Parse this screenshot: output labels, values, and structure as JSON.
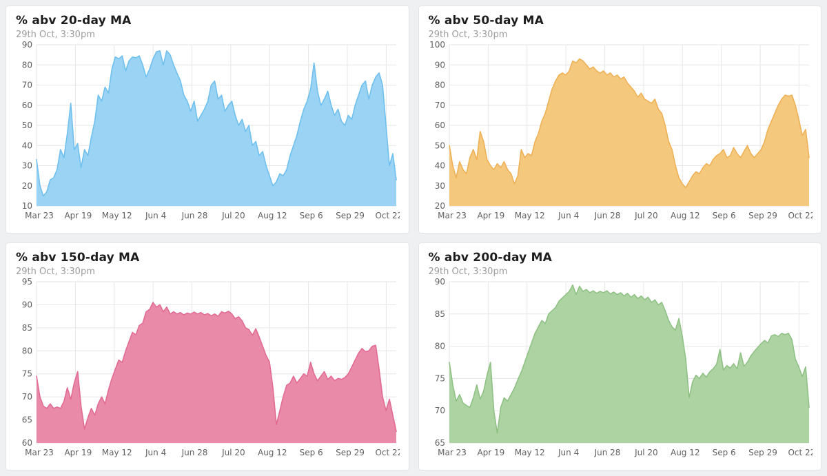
{
  "page": {
    "background": "#eef0f1",
    "card_background": "#ffffff",
    "card_border": "#e2e5e8",
    "gridline_color": "#e6e6e6",
    "axis_label_color": "#606060"
  },
  "chart_data": [
    {
      "type": "area",
      "title": "% abv 20-day MA",
      "subtitle": "29th Oct, 3:30pm",
      "xlabel": "",
      "ylabel": "",
      "grid": true,
      "legend": "none",
      "x_tick_labels": [
        "Mar 23",
        "Apr 19",
        "May 12",
        "Jun 4",
        "Jun 28",
        "Jul 20",
        "Aug 12",
        "Sep 6",
        "Sep 29",
        "Oct 22"
      ],
      "ylim": [
        10,
        90
      ],
      "y_step": 10,
      "fill_color": "#9ad3f3",
      "line_color": "#6fc0ee",
      "values": [
        33,
        20,
        15,
        17,
        23,
        24,
        28,
        38,
        34,
        46,
        61,
        38,
        41,
        29,
        38,
        35,
        44,
        52,
        65,
        62,
        69,
        66,
        78,
        84,
        83,
        84.5,
        77,
        82,
        84,
        83.5,
        84.5,
        80,
        74,
        78,
        83,
        86.5,
        87,
        80,
        87,
        85,
        80,
        76,
        72,
        65,
        62,
        57,
        62,
        52,
        55,
        58,
        62,
        70,
        72,
        63,
        65,
        57,
        60,
        62,
        55,
        50,
        53,
        47,
        50,
        40,
        42,
        35,
        37,
        30,
        25,
        20,
        22,
        26,
        25,
        28,
        35,
        40,
        45,
        52,
        58,
        62,
        68,
        81,
        67,
        60,
        63,
        67,
        60,
        55,
        58,
        52,
        50,
        55,
        53,
        60,
        65,
        70,
        72,
        63,
        70,
        74,
        76,
        70,
        50,
        30,
        36,
        23
      ]
    },
    {
      "type": "area",
      "title": "% abv 50-day MA",
      "subtitle": "29th Oct, 3:30pm",
      "xlabel": "",
      "ylabel": "",
      "grid": true,
      "legend": "none",
      "x_tick_labels": [
        "Mar 23",
        "Apr 19",
        "May 12",
        "Jun 4",
        "Jun 28",
        "Jul 20",
        "Aug 12",
        "Sep 6",
        "Sep 29",
        "Oct 22"
      ],
      "ylim": [
        20,
        100
      ],
      "y_step": 10,
      "fill_color": "#f4c87d",
      "line_color": "#eeb156",
      "values": [
        50,
        40,
        34,
        42,
        38,
        36,
        44,
        48,
        43,
        57,
        52,
        43,
        40,
        38,
        41,
        39,
        42,
        38,
        36,
        31,
        35,
        48,
        44,
        46,
        45,
        52,
        56,
        62,
        66,
        72,
        78,
        82,
        85,
        86,
        85,
        87,
        92,
        91,
        93,
        92,
        90,
        88,
        89,
        87,
        86,
        87,
        85,
        86,
        84,
        85,
        83,
        84,
        81,
        79,
        77,
        74,
        76,
        73,
        72,
        71,
        73,
        68,
        66,
        60,
        52,
        48,
        40,
        34,
        31,
        29,
        32,
        35,
        37,
        36,
        39,
        41,
        40,
        43,
        45,
        46,
        48,
        44,
        45,
        49,
        46,
        44,
        47,
        50,
        46,
        44,
        46,
        48,
        52,
        58,
        62,
        66,
        70,
        73,
        75,
        74.5,
        75,
        70,
        63,
        55,
        58,
        44
      ]
    },
    {
      "type": "area",
      "title": "% abv 150-day MA",
      "subtitle": "29th Oct, 3:30pm",
      "xlabel": "",
      "ylabel": "",
      "grid": true,
      "legend": "none",
      "x_tick_labels": [
        "Mar 23",
        "Apr 19",
        "May 12",
        "Jun 4",
        "Jun 28",
        "Jul 20",
        "Aug 12",
        "Sep 6",
        "Sep 29",
        "Oct 22"
      ],
      "ylim": [
        60,
        95
      ],
      "y_step": 5,
      "fill_color": "#e98aa9",
      "line_color": "#e16b92",
      "values": [
        74.5,
        70,
        68,
        67.5,
        68.5,
        67.5,
        67.8,
        67.5,
        69,
        72,
        69.5,
        73,
        75.5,
        68,
        63,
        65.5,
        67.5,
        66,
        68.5,
        70,
        68.5,
        71.5,
        74,
        76,
        78,
        77.5,
        80,
        82,
        84,
        83.5,
        85.5,
        86,
        88.5,
        89,
        90.5,
        89.5,
        90,
        88.5,
        89.5,
        88,
        88.5,
        88,
        88.3,
        87.8,
        88.2,
        88,
        88.4,
        88,
        88.3,
        87.8,
        88.1,
        87.6,
        88,
        87.5,
        88.5,
        88.2,
        88.6,
        88,
        87,
        87.4,
        86.5,
        85,
        84.6,
        83.4,
        84.8,
        83,
        81,
        79,
        77.5,
        72,
        64,
        67,
        70,
        72.5,
        73,
        74.5,
        73,
        74,
        75,
        74.5,
        77.5,
        75,
        73.5,
        74.5,
        75.5,
        73.8,
        74.5,
        73.5,
        74,
        73.8,
        74.2,
        75,
        76.5,
        78,
        79.5,
        80.5,
        79.8,
        80,
        81,
        81.2,
        76,
        70,
        67,
        69.5,
        66,
        62.5
      ]
    },
    {
      "type": "area",
      "title": "% abv 200-day MA",
      "subtitle": "29th Oct, 3:30pm",
      "xlabel": "",
      "ylabel": "",
      "grid": true,
      "legend": "none",
      "x_tick_labels": [
        "Mar 23",
        "Apr 19",
        "May 12",
        "Jun 4",
        "Jun 28",
        "Jul 20",
        "Aug 12",
        "Sep 6",
        "Sep 29",
        "Oct 22"
      ],
      "ylim": [
        65,
        90
      ],
      "y_step": 5,
      "fill_color": "#aed3a3",
      "line_color": "#8fc185",
      "values": [
        77.5,
        74,
        71.5,
        72.5,
        71.2,
        70.8,
        70.5,
        72,
        74,
        71.8,
        73,
        75.5,
        77.5,
        70,
        66.5,
        70.5,
        72,
        71.5,
        72.5,
        73.5,
        74.8,
        76,
        77.5,
        79,
        80.5,
        82,
        83,
        84,
        83.5,
        85,
        85.5,
        86,
        87,
        87.5,
        88,
        88.5,
        89.5,
        88,
        89.3,
        88.5,
        88.8,
        88.3,
        88.6,
        88.2,
        88.5,
        88.3,
        88.6,
        88.1,
        88.4,
        88,
        88.3,
        87.8,
        88.2,
        87.6,
        88,
        87.4,
        87.8,
        87.2,
        87.6,
        86.8,
        87.2,
        86.4,
        86.8,
        85.5,
        84,
        83,
        82.5,
        84.3,
        81.5,
        78,
        72,
        74.5,
        75.5,
        75,
        75.8,
        75.2,
        76,
        76.5,
        77.2,
        79.5,
        76.3,
        77,
        76.6,
        77.3,
        76.5,
        79,
        76.9,
        77.5,
        78.5,
        79.2,
        79.8,
        80.4,
        80.9,
        80.5,
        81.6,
        81.8,
        81.5,
        82,
        81.8,
        82,
        81,
        78,
        76.8,
        75.3,
        76.8,
        70.5
      ]
    }
  ]
}
